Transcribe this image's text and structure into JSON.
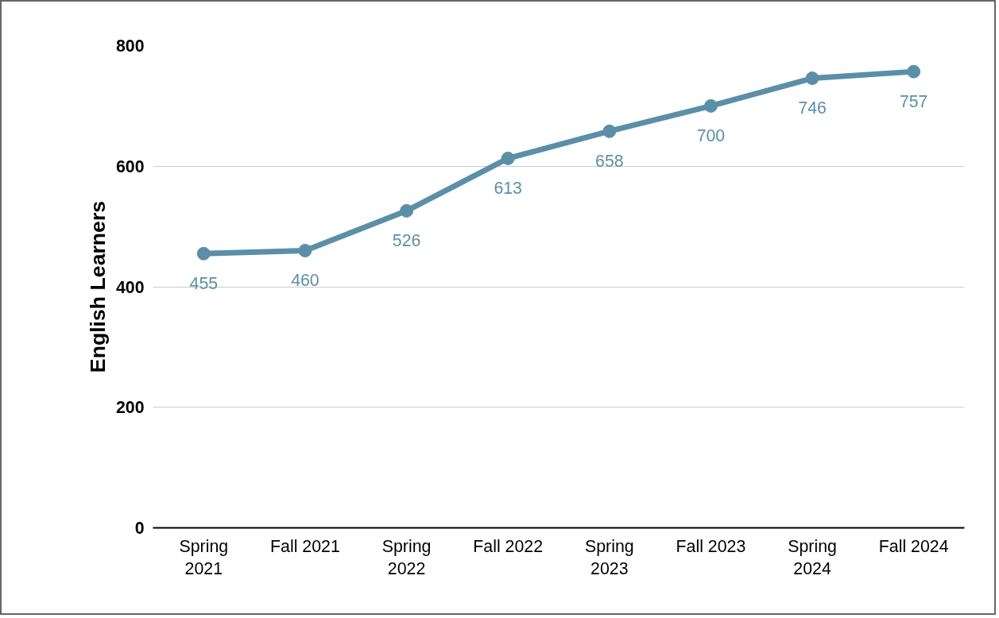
{
  "chart_data": {
    "type": "line",
    "ylabel": "English Learners",
    "categories": [
      "Spring 2021",
      "Fall 2021",
      "Spring 2022",
      "Fall 2022",
      "Spring 2023",
      "Fall 2023",
      "Spring 2024",
      "Fall 2024"
    ],
    "series": [
      {
        "color": "#5b8fa8",
        "values": [
          455,
          460,
          526,
          613,
          658,
          700,
          746,
          757
        ]
      }
    ],
    "ylim": [
      0,
      800
    ],
    "yticks": [
      0,
      200,
      400,
      600,
      800
    ],
    "grid": "y",
    "marker": "circle",
    "line_style": "solid",
    "data_labels": true
  }
}
